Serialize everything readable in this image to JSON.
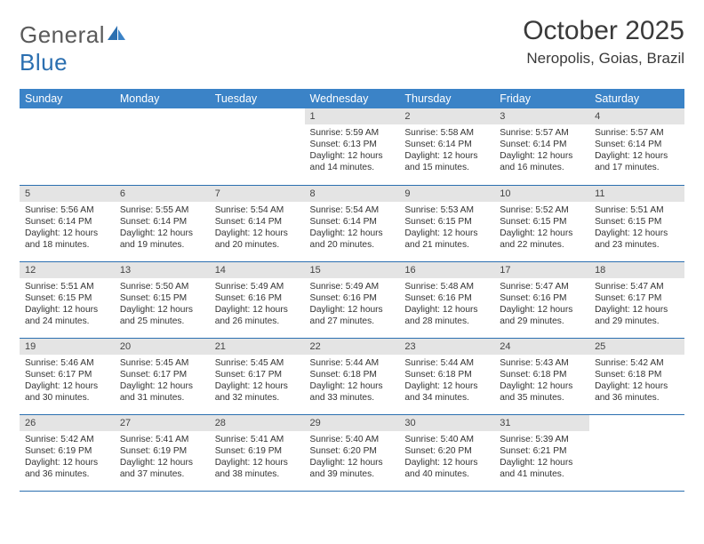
{
  "logo": {
    "text_general": "General",
    "text_blue": "Blue"
  },
  "title": "October 2025",
  "location": "Neropolis, Goias, Brazil",
  "colors": {
    "header_bg": "#3b83c7",
    "border": "#2b6fb0",
    "daynum_bg": "#e4e4e4",
    "text": "#333333"
  },
  "day_headers": [
    "Sunday",
    "Monday",
    "Tuesday",
    "Wednesday",
    "Thursday",
    "Friday",
    "Saturday"
  ],
  "weeks": [
    [
      null,
      null,
      null,
      {
        "n": "1",
        "sunrise": "5:59 AM",
        "sunset": "6:13 PM",
        "daylight": "12 hours and 14 minutes."
      },
      {
        "n": "2",
        "sunrise": "5:58 AM",
        "sunset": "6:14 PM",
        "daylight": "12 hours and 15 minutes."
      },
      {
        "n": "3",
        "sunrise": "5:57 AM",
        "sunset": "6:14 PM",
        "daylight": "12 hours and 16 minutes."
      },
      {
        "n": "4",
        "sunrise": "5:57 AM",
        "sunset": "6:14 PM",
        "daylight": "12 hours and 17 minutes."
      }
    ],
    [
      {
        "n": "5",
        "sunrise": "5:56 AM",
        "sunset": "6:14 PM",
        "daylight": "12 hours and 18 minutes."
      },
      {
        "n": "6",
        "sunrise": "5:55 AM",
        "sunset": "6:14 PM",
        "daylight": "12 hours and 19 minutes."
      },
      {
        "n": "7",
        "sunrise": "5:54 AM",
        "sunset": "6:14 PM",
        "daylight": "12 hours and 20 minutes."
      },
      {
        "n": "8",
        "sunrise": "5:54 AM",
        "sunset": "6:14 PM",
        "daylight": "12 hours and 20 minutes."
      },
      {
        "n": "9",
        "sunrise": "5:53 AM",
        "sunset": "6:15 PM",
        "daylight": "12 hours and 21 minutes."
      },
      {
        "n": "10",
        "sunrise": "5:52 AM",
        "sunset": "6:15 PM",
        "daylight": "12 hours and 22 minutes."
      },
      {
        "n": "11",
        "sunrise": "5:51 AM",
        "sunset": "6:15 PM",
        "daylight": "12 hours and 23 minutes."
      }
    ],
    [
      {
        "n": "12",
        "sunrise": "5:51 AM",
        "sunset": "6:15 PM",
        "daylight": "12 hours and 24 minutes."
      },
      {
        "n": "13",
        "sunrise": "5:50 AM",
        "sunset": "6:15 PM",
        "daylight": "12 hours and 25 minutes."
      },
      {
        "n": "14",
        "sunrise": "5:49 AM",
        "sunset": "6:16 PM",
        "daylight": "12 hours and 26 minutes."
      },
      {
        "n": "15",
        "sunrise": "5:49 AM",
        "sunset": "6:16 PM",
        "daylight": "12 hours and 27 minutes."
      },
      {
        "n": "16",
        "sunrise": "5:48 AM",
        "sunset": "6:16 PM",
        "daylight": "12 hours and 28 minutes."
      },
      {
        "n": "17",
        "sunrise": "5:47 AM",
        "sunset": "6:16 PM",
        "daylight": "12 hours and 29 minutes."
      },
      {
        "n": "18",
        "sunrise": "5:47 AM",
        "sunset": "6:17 PM",
        "daylight": "12 hours and 29 minutes."
      }
    ],
    [
      {
        "n": "19",
        "sunrise": "5:46 AM",
        "sunset": "6:17 PM",
        "daylight": "12 hours and 30 minutes."
      },
      {
        "n": "20",
        "sunrise": "5:45 AM",
        "sunset": "6:17 PM",
        "daylight": "12 hours and 31 minutes."
      },
      {
        "n": "21",
        "sunrise": "5:45 AM",
        "sunset": "6:17 PM",
        "daylight": "12 hours and 32 minutes."
      },
      {
        "n": "22",
        "sunrise": "5:44 AM",
        "sunset": "6:18 PM",
        "daylight": "12 hours and 33 minutes."
      },
      {
        "n": "23",
        "sunrise": "5:44 AM",
        "sunset": "6:18 PM",
        "daylight": "12 hours and 34 minutes."
      },
      {
        "n": "24",
        "sunrise": "5:43 AM",
        "sunset": "6:18 PM",
        "daylight": "12 hours and 35 minutes."
      },
      {
        "n": "25",
        "sunrise": "5:42 AM",
        "sunset": "6:18 PM",
        "daylight": "12 hours and 36 minutes."
      }
    ],
    [
      {
        "n": "26",
        "sunrise": "5:42 AM",
        "sunset": "6:19 PM",
        "daylight": "12 hours and 36 minutes."
      },
      {
        "n": "27",
        "sunrise": "5:41 AM",
        "sunset": "6:19 PM",
        "daylight": "12 hours and 37 minutes."
      },
      {
        "n": "28",
        "sunrise": "5:41 AM",
        "sunset": "6:19 PM",
        "daylight": "12 hours and 38 minutes."
      },
      {
        "n": "29",
        "sunrise": "5:40 AM",
        "sunset": "6:20 PM",
        "daylight": "12 hours and 39 minutes."
      },
      {
        "n": "30",
        "sunrise": "5:40 AM",
        "sunset": "6:20 PM",
        "daylight": "12 hours and 40 minutes."
      },
      {
        "n": "31",
        "sunrise": "5:39 AM",
        "sunset": "6:21 PM",
        "daylight": "12 hours and 41 minutes."
      },
      null
    ]
  ],
  "labels": {
    "sunrise": "Sunrise:",
    "sunset": "Sunset:",
    "daylight": "Daylight:"
  }
}
